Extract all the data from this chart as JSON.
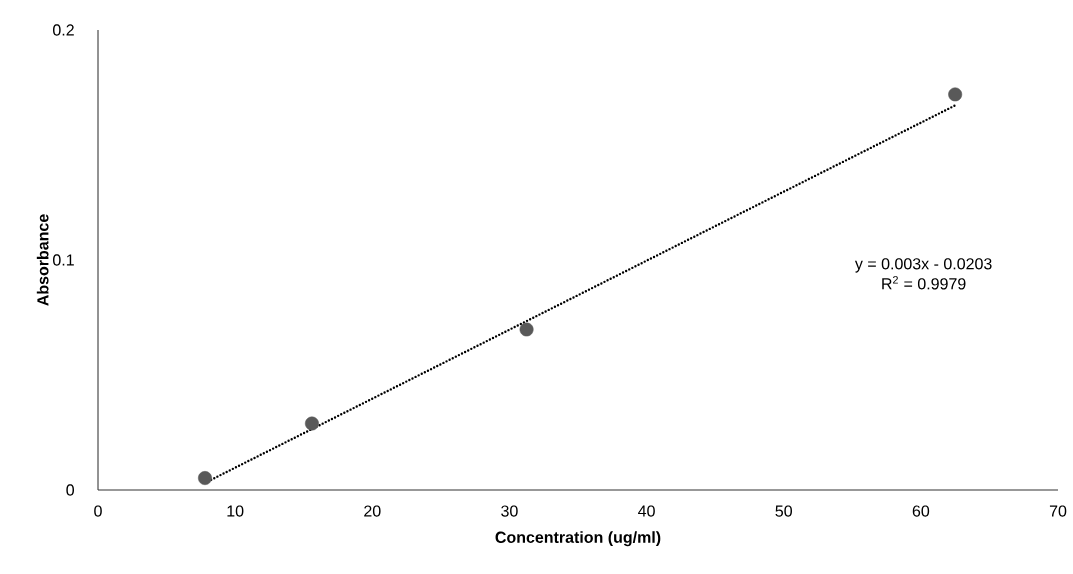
{
  "chart_data": {
    "type": "scatter",
    "xlabel": "Concentration (ug/ml)",
    "ylabel": "Absorbance",
    "xlim": [
      0,
      70
    ],
    "xticks": [
      0,
      10,
      20,
      30,
      40,
      50,
      60,
      70
    ],
    "ylim": [
      0,
      0.2
    ],
    "yticks": [
      0,
      0.1,
      0.2
    ],
    "grid": false,
    "marker": "circle",
    "series": [
      {
        "color": "#595959",
        "x": [
          7.8,
          15.6,
          31.25,
          62.5
        ],
        "values": [
          0.0052,
          0.0289,
          0.0698,
          0.172
        ]
      },
      {
        "type": "line",
        "color": "#000000",
        "line_style": "dotted",
        "marker": "none",
        "x": [
          7.8,
          62.5
        ],
        "values": [
          0.0031,
          0.1672
        ]
      }
    ],
    "annotations": [
      "y = 0.003x - 0.0203",
      "R$^{2}$ = 0.9979"
    ]
  }
}
